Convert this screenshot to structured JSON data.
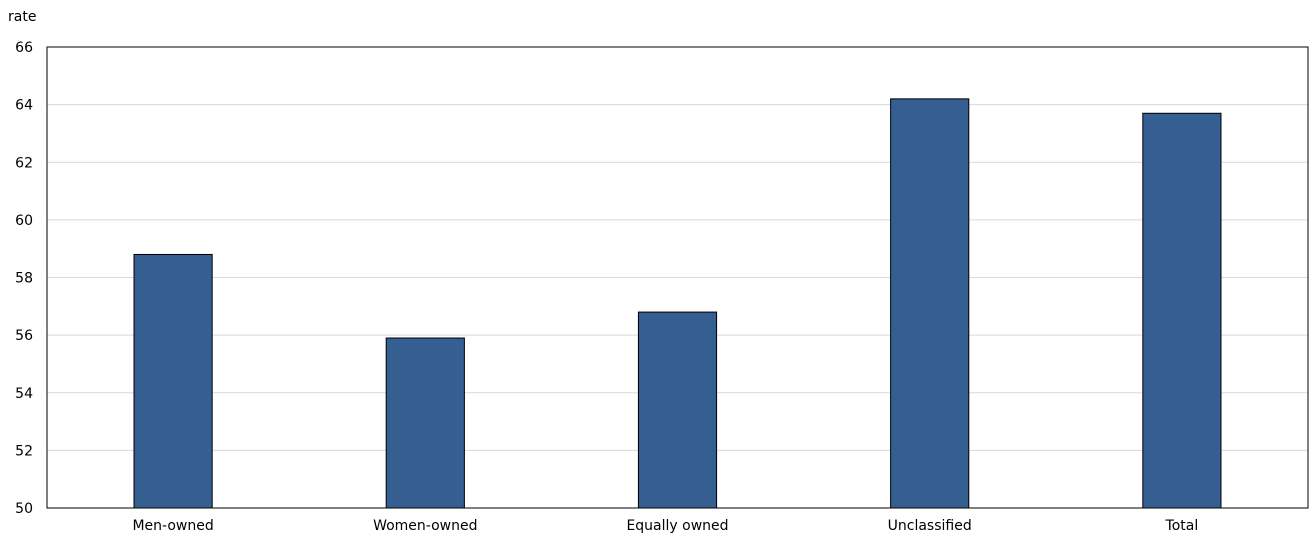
{
  "chart_data": {
    "type": "bar",
    "ylabel": "rate",
    "xlabel": "",
    "categories": [
      "Men-owned",
      "Women-owned",
      "Equally owned",
      "Unclassified",
      "Total"
    ],
    "values": [
      58.8,
      55.9,
      56.8,
      64.2,
      63.7
    ],
    "ylim": [
      50,
      66
    ],
    "yticks": [
      "50",
      "52",
      "54",
      "56",
      "58",
      "60",
      "62",
      "64",
      "66"
    ],
    "grid": true,
    "bar_color": "#365f91"
  }
}
